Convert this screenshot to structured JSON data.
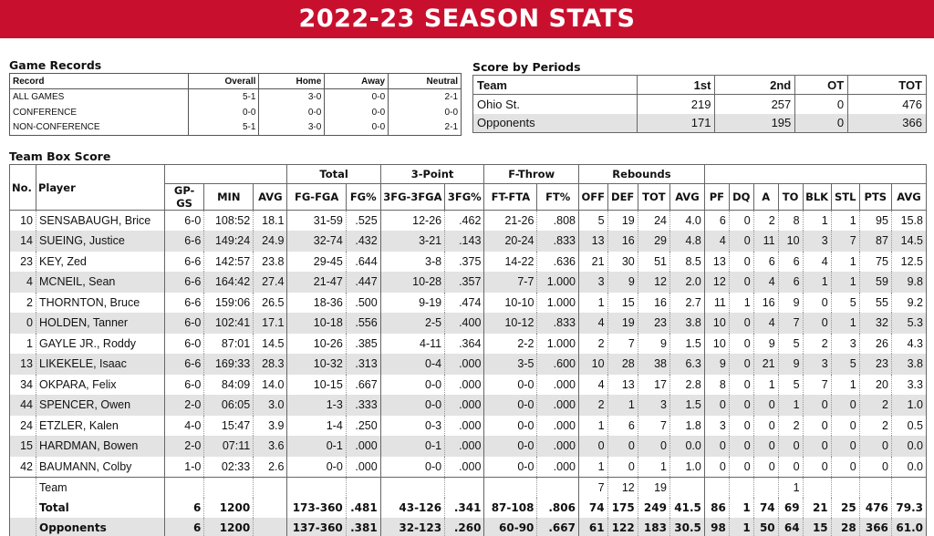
{
  "title": "2022-23 SEASON STATS",
  "game_records": {
    "title": "Game Records",
    "headers": [
      "Record",
      "Overall",
      "Home",
      "Away",
      "Neutral"
    ],
    "rows": [
      [
        "ALL GAMES",
        "5-1",
        "3-0",
        "0-0",
        "2-1"
      ],
      [
        "CONFERENCE",
        "0-0",
        "0-0",
        "0-0",
        "0-0"
      ],
      [
        "NON-CONFERENCE",
        "5-1",
        "3-0",
        "0-0",
        "2-1"
      ]
    ]
  },
  "score_by_periods": {
    "title": "Score by Periods",
    "headers": [
      "Team",
      "1st",
      "2nd",
      "OT",
      "TOT"
    ],
    "rows": [
      [
        "Ohio St.",
        "219",
        "257",
        "0",
        "476"
      ],
      [
        "Opponents",
        "171",
        "195",
        "0",
        "366"
      ]
    ]
  },
  "box_score": {
    "title": "Team Box Score",
    "group_headers": {
      "no": "No.",
      "player": "Player",
      "total": "Total",
      "three_point": "3-Point",
      "free_throw": "F-Throw",
      "rebounds": "Rebounds"
    },
    "column_headers": [
      "GP-GS",
      "MIN",
      "AVG",
      "FG-FGA",
      "FG%",
      "3FG-3FGA",
      "3FG%",
      "FT-FTA",
      "FT%",
      "OFF",
      "DEF",
      "TOT",
      "AVG",
      "PF",
      "DQ",
      "A",
      "TO",
      "BLK",
      "STL",
      "PTS",
      "AVG"
    ],
    "players": [
      [
        "10",
        "SENSABAUGH, Brice",
        "6-0",
        "108:52",
        "18.1",
        "31-59",
        ".525",
        "12-26",
        ".462",
        "21-26",
        ".808",
        "5",
        "19",
        "24",
        "4.0",
        "6",
        "0",
        "2",
        "8",
        "1",
        "1",
        "95",
        "15.8"
      ],
      [
        "14",
        "SUEING, Justice",
        "6-6",
        "149:24",
        "24.9",
        "32-74",
        ".432",
        "3-21",
        ".143",
        "20-24",
        ".833",
        "13",
        "16",
        "29",
        "4.8",
        "4",
        "0",
        "11",
        "10",
        "3",
        "7",
        "87",
        "14.5"
      ],
      [
        "23",
        "KEY, Zed",
        "6-6",
        "142:57",
        "23.8",
        "29-45",
        ".644",
        "3-8",
        ".375",
        "14-22",
        ".636",
        "21",
        "30",
        "51",
        "8.5",
        "13",
        "0",
        "6",
        "6",
        "4",
        "1",
        "75",
        "12.5"
      ],
      [
        "4",
        "MCNEIL, Sean",
        "6-6",
        "164:42",
        "27.4",
        "21-47",
        ".447",
        "10-28",
        ".357",
        "7-7",
        "1.000",
        "3",
        "9",
        "12",
        "2.0",
        "12",
        "0",
        "4",
        "6",
        "1",
        "1",
        "59",
        "9.8"
      ],
      [
        "2",
        "THORNTON, Bruce",
        "6-6",
        "159:06",
        "26.5",
        "18-36",
        ".500",
        "9-19",
        ".474",
        "10-10",
        "1.000",
        "1",
        "15",
        "16",
        "2.7",
        "11",
        "1",
        "16",
        "9",
        "0",
        "5",
        "55",
        "9.2"
      ],
      [
        "0",
        "HOLDEN, Tanner",
        "6-0",
        "102:41",
        "17.1",
        "10-18",
        ".556",
        "2-5",
        ".400",
        "10-12",
        ".833",
        "4",
        "19",
        "23",
        "3.8",
        "10",
        "0",
        "4",
        "7",
        "0",
        "1",
        "32",
        "5.3"
      ],
      [
        "1",
        "GAYLE JR., Roddy",
        "6-0",
        "87:01",
        "14.5",
        "10-26",
        ".385",
        "4-11",
        ".364",
        "2-2",
        "1.000",
        "2",
        "7",
        "9",
        "1.5",
        "10",
        "0",
        "9",
        "5",
        "2",
        "3",
        "26",
        "4.3"
      ],
      [
        "13",
        "LIKEKELE, Isaac",
        "6-6",
        "169:33",
        "28.3",
        "10-32",
        ".313",
        "0-4",
        ".000",
        "3-5",
        ".600",
        "10",
        "28",
        "38",
        "6.3",
        "9",
        "0",
        "21",
        "9",
        "3",
        "5",
        "23",
        "3.8"
      ],
      [
        "34",
        "OKPARA, Felix",
        "6-0",
        "84:09",
        "14.0",
        "10-15",
        ".667",
        "0-0",
        ".000",
        "0-0",
        ".000",
        "4",
        "13",
        "17",
        "2.8",
        "8",
        "0",
        "1",
        "5",
        "7",
        "1",
        "20",
        "3.3"
      ],
      [
        "44",
        "SPENCER, Owen",
        "2-0",
        "06:05",
        "3.0",
        "1-3",
        ".333",
        "0-0",
        ".000",
        "0-0",
        ".000",
        "2",
        "1",
        "3",
        "1.5",
        "0",
        "0",
        "0",
        "1",
        "0",
        "0",
        "2",
        "1.0"
      ],
      [
        "24",
        "ETZLER, Kalen",
        "4-0",
        "15:47",
        "3.9",
        "1-4",
        ".250",
        "0-3",
        ".000",
        "0-0",
        ".000",
        "1",
        "6",
        "7",
        "1.8",
        "3",
        "0",
        "0",
        "2",
        "0",
        "0",
        "2",
        "0.5"
      ],
      [
        "15",
        "HARDMAN, Bowen",
        "2-0",
        "07:11",
        "3.6",
        "0-1",
        ".000",
        "0-1",
        ".000",
        "0-0",
        ".000",
        "0",
        "0",
        "0",
        "0.0",
        "0",
        "0",
        "0",
        "0",
        "0",
        "0",
        "0",
        "0.0"
      ],
      [
        "42",
        "BAUMANN, Colby",
        "1-0",
        "02:33",
        "2.6",
        "0-0",
        ".000",
        "0-0",
        ".000",
        "0-0",
        ".000",
        "1",
        "0",
        "1",
        "1.0",
        "0",
        "0",
        "0",
        "0",
        "0",
        "0",
        "0",
        "0.0"
      ]
    ],
    "team_row": [
      "",
      "Team",
      "",
      "",
      "",
      "",
      "",
      "",
      "",
      "",
      "",
      "7",
      "12",
      "19",
      "",
      "",
      "",
      "",
      "1",
      "",
      "",
      "",
      ""
    ],
    "total_row": [
      "",
      "Total",
      "6",
      "1200",
      "",
      "173-360",
      ".481",
      "43-126",
      ".341",
      "87-108",
      ".806",
      "74",
      "175",
      "249",
      "41.5",
      "86",
      "1",
      "74",
      "69",
      "21",
      "25",
      "476",
      "79.3"
    ],
    "opponents_row": [
      "",
      "Opponents",
      "6",
      "1200",
      "",
      "137-360",
      ".381",
      "32-123",
      ".260",
      "60-90",
      ".667",
      "61",
      "122",
      "183",
      "30.5",
      "98",
      "1",
      "50",
      "64",
      "15",
      "28",
      "366",
      "61.0"
    ]
  }
}
